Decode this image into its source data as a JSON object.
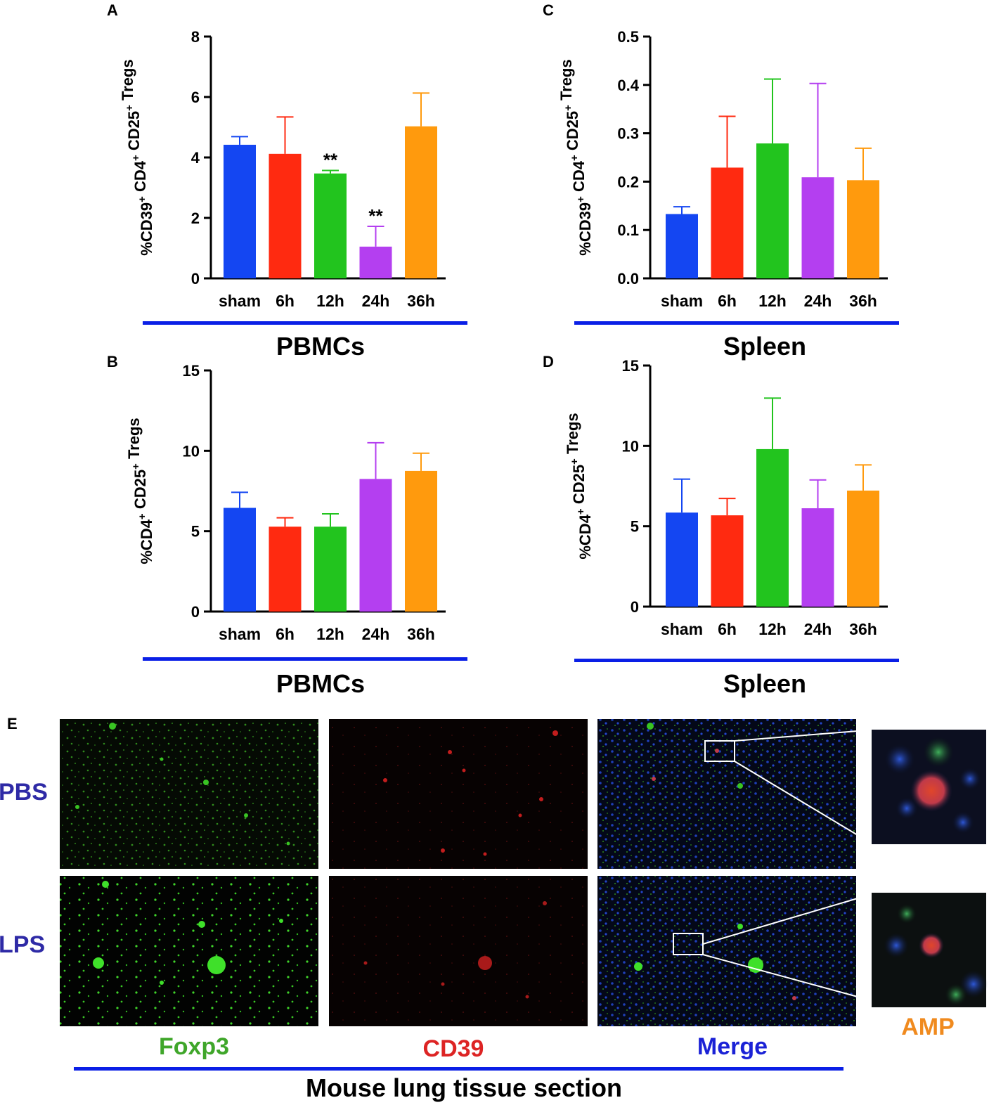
{
  "chart_data": [
    {
      "panel": "A",
      "type": "bar",
      "categories": [
        "sham",
        "6h",
        "12h",
        "24h",
        "36h"
      ],
      "values": [
        4.42,
        4.12,
        3.47,
        1.05,
        5.03
      ],
      "errors": [
        0.27,
        1.22,
        0.1,
        0.67,
        1.1
      ],
      "annotations": [
        "",
        "",
        "**",
        "**",
        ""
      ],
      "colors": [
        "#1446f2",
        "#ff2a10",
        "#22c41e",
        "#b43ff0",
        "#ff9a0d"
      ],
      "ylim": [
        0,
        8
      ],
      "yticks": [
        "0",
        "2",
        "4",
        "6",
        "8"
      ],
      "ylabel": "%CD39⁺ CD4⁺ CD25⁺ Tregs",
      "group_label": "PBMCs"
    },
    {
      "panel": "B",
      "type": "bar",
      "categories": [
        "sham",
        "6h",
        "12h",
        "24h",
        "36h"
      ],
      "values": [
        6.45,
        5.28,
        5.28,
        8.25,
        8.75
      ],
      "errors": [
        0.97,
        0.55,
        0.8,
        2.25,
        1.1
      ],
      "annotations": [
        "",
        "",
        "",
        "",
        ""
      ],
      "colors": [
        "#1446f2",
        "#ff2a10",
        "#22c41e",
        "#b43ff0",
        "#ff9a0d"
      ],
      "ylim": [
        0,
        15
      ],
      "yticks": [
        "0",
        "5",
        "10",
        "15"
      ],
      "ylabel": "%CD4⁺ CD25⁺ Tregs",
      "group_label": "PBMCs"
    },
    {
      "panel": "C",
      "type": "bar",
      "categories": [
        "sham",
        "6h",
        "12h",
        "24h",
        "36h"
      ],
      "values": [
        0.133,
        0.229,
        0.279,
        0.209,
        0.203
      ],
      "errors": [
        0.015,
        0.106,
        0.133,
        0.194,
        0.066
      ],
      "annotations": [
        "",
        "",
        "",
        "",
        ""
      ],
      "colors": [
        "#1446f2",
        "#ff2a10",
        "#22c41e",
        "#b43ff0",
        "#ff9a0d"
      ],
      "ylim": [
        0,
        0.5
      ],
      "yticks": [
        "0.0",
        "0.1",
        "0.2",
        "0.3",
        "0.4",
        "0.5"
      ],
      "ylabel": "%CD39⁺ CD4⁺ CD25⁺ Tregs",
      "group_label": "Spleen"
    },
    {
      "panel": "D",
      "type": "bar",
      "categories": [
        "sham",
        "6h",
        "12h",
        "24h",
        "36h"
      ],
      "values": [
        5.85,
        5.68,
        9.8,
        6.12,
        7.22
      ],
      "errors": [
        2.08,
        1.05,
        3.17,
        1.76,
        1.6
      ],
      "annotations": [
        "",
        "",
        "",
        "",
        ""
      ],
      "colors": [
        "#1446f2",
        "#ff2a10",
        "#22c41e",
        "#b43ff0",
        "#ff9a0d"
      ],
      "ylim": [
        0,
        15
      ],
      "yticks": [
        "0",
        "5",
        "10",
        "15"
      ],
      "ylabel": "%CD4⁺ CD25⁺ Tregs",
      "group_label": "Spleen"
    }
  ],
  "panel_e": {
    "letter": "E",
    "rows": [
      "PBS",
      "LPS"
    ],
    "channels": [
      "Foxp3",
      "CD39",
      "Merge"
    ],
    "zoom_label": "AMP",
    "caption": "Mouse lung tissue section",
    "colors": {
      "row_label": "#2e2aa6",
      "foxp3": "#3fa62a",
      "cd39": "#dd2424",
      "merge": "#1b22d6",
      "amp": "#f08a1e",
      "underline": "#0a1fe6"
    }
  }
}
